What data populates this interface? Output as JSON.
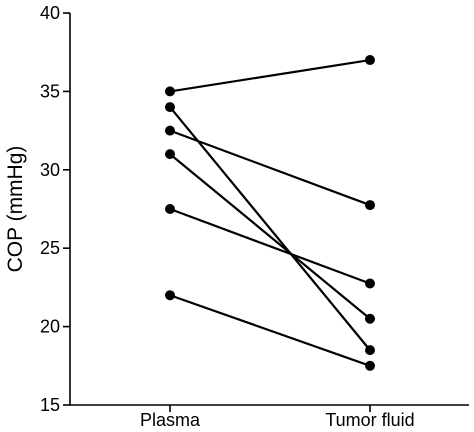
{
  "chart_data": {
    "type": "line",
    "title": "",
    "xlabel": "",
    "ylabel": "COP (mmHg)",
    "categories": [
      "Plasma",
      "Tumor fluid"
    ],
    "ylim": [
      15,
      40
    ],
    "yticks": [
      "15",
      "20",
      "25",
      "30",
      "35",
      "40"
    ],
    "grid": false,
    "legend": "none",
    "marker": "filled-circle",
    "line_color": "#000000",
    "series": [
      {
        "values": [
          35,
          37
        ]
      },
      {
        "values": [
          34,
          18.5
        ]
      },
      {
        "values": [
          32.5,
          27.75
        ]
      },
      {
        "values": [
          31,
          20.5
        ]
      },
      {
        "values": [
          27.5,
          22.75
        ]
      },
      {
        "values": [
          22,
          17.5
        ]
      }
    ]
  }
}
